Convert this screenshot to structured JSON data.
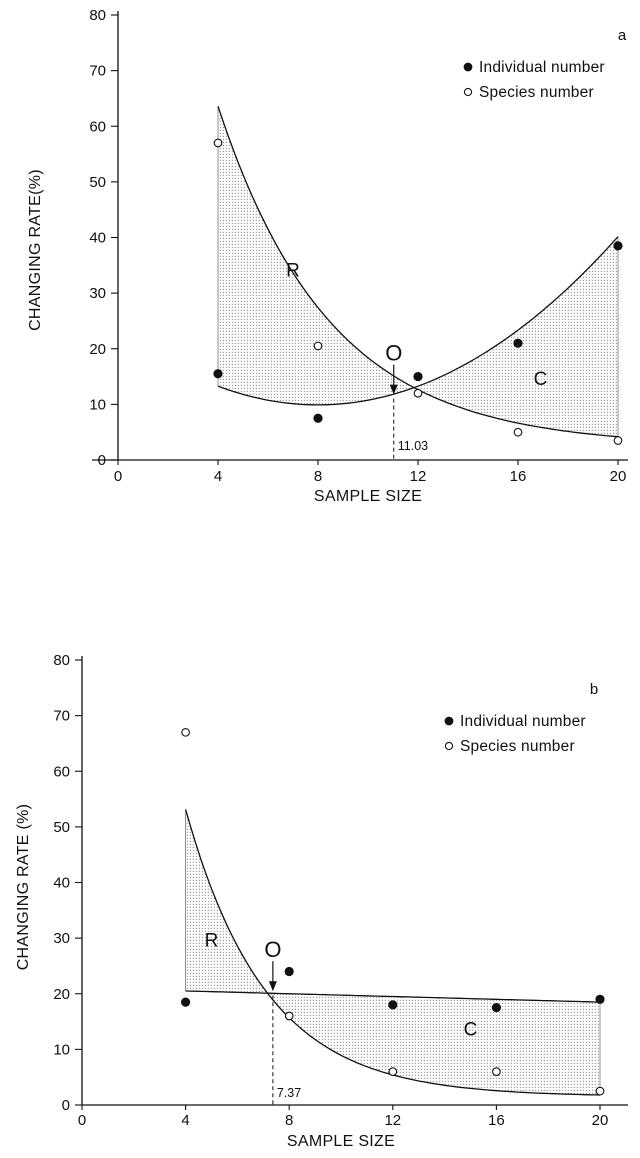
{
  "chart_data": [
    {
      "type": "scatter",
      "panel_label": "a",
      "title": "",
      "xlabel": "SAMPLE SIZE",
      "ylabel": "CHANGING RATE(%)",
      "xlim": [
        0,
        20
      ],
      "ylim": [
        0,
        80
      ],
      "x_ticks": [
        "0",
        "4",
        "8",
        "12",
        "16",
        "20"
      ],
      "y_ticks": [
        "0",
        "10",
        "20",
        "30",
        "40",
        "50",
        "60",
        "70",
        "80"
      ],
      "grid": false,
      "legend_position": "top-right",
      "series": [
        {
          "name": "Individual number",
          "marker": "filled-circle",
          "x": [
            4,
            8,
            12,
            16,
            20
          ],
          "y": [
            15.5,
            7.5,
            15,
            21,
            38.5
          ],
          "fit": {
            "kind": "quadratic",
            "start": 4,
            "end": 20,
            "a": 0.21,
            "b": -3.36,
            "c": 23.35
          }
        },
        {
          "name": "Species number",
          "marker": "open-circle",
          "x": [
            4,
            8,
            12,
            16,
            20
          ],
          "y": [
            57,
            20.5,
            12,
            5,
            3.5
          ],
          "fit": {
            "kind": "exponential",
            "start": 4,
            "end": 20,
            "A": 150,
            "k": 0.2245,
            "base": 2.5
          }
        }
      ],
      "annotations": {
        "region_upper": "R",
        "region_lower": "C",
        "crossover_letter": "O",
        "crossover_x": 11.03,
        "crossover_y": 11.4,
        "crossover_value": "11.03"
      }
    },
    {
      "type": "scatter",
      "panel_label": "b",
      "title": "",
      "xlabel": "SAMPLE SIZE",
      "ylabel": "CHANGING RATE (%)",
      "xlim": [
        0,
        20
      ],
      "ylim": [
        0,
        80
      ],
      "x_ticks": [
        "0",
        "4",
        "8",
        "12",
        "16",
        "20"
      ],
      "y_ticks": [
        "0",
        "10",
        "20",
        "30",
        "40",
        "50",
        "60",
        "70",
        "80"
      ],
      "grid": false,
      "legend_position": "top-right",
      "series": [
        {
          "name": "Individual number",
          "marker": "filled-circle",
          "x": [
            4,
            8,
            12,
            16,
            20
          ],
          "y": [
            18.5,
            24,
            18,
            17.5,
            19
          ],
          "fit": {
            "kind": "linear",
            "start": 4,
            "end": 20,
            "m": -0.125,
            "c": 21
          }
        },
        {
          "name": "Species number",
          "marker": "open-circle",
          "x": [
            4,
            8,
            12,
            16,
            20
          ],
          "y": [
            67,
            16,
            6,
            6,
            2.5
          ],
          "fit": {
            "kind": "exponential",
            "start": 4,
            "end": 20,
            "A": 188,
            "k": 0.323,
            "base": 1.5
          }
        }
      ],
      "annotations": {
        "region_upper": "R",
        "region_lower": "C",
        "crossover_letter": "O",
        "crossover_x": 7.37,
        "crossover_y": 20.1,
        "crossover_value": "7.37"
      }
    }
  ]
}
